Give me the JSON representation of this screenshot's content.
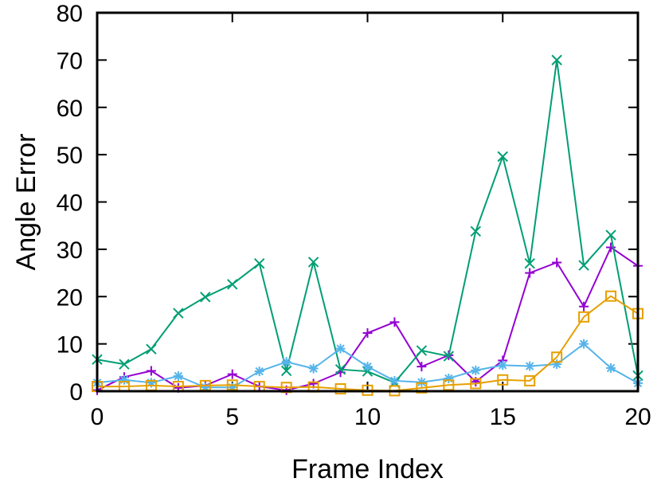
{
  "chart_data": {
    "type": "line",
    "xlabel": "Frame Index",
    "ylabel": "Angle Error",
    "xlim": [
      0,
      20
    ],
    "ylim": [
      0,
      80
    ],
    "xticks": [
      "0",
      "5",
      "10",
      "15",
      "20"
    ],
    "yticks": [
      "0",
      "10",
      "20",
      "30",
      "40",
      "50",
      "60",
      "70",
      "80"
    ],
    "grid": false,
    "legend": "none",
    "x": [
      0,
      1,
      2,
      3,
      4,
      5,
      6,
      7,
      8,
      9,
      10,
      11,
      12,
      13,
      14,
      15,
      16,
      17,
      18,
      19,
      20
    ],
    "series": [
      {
        "color": "#9400d3",
        "marker": "plus",
        "values": [
          0.2,
          3.0,
          4.3,
          0.7,
          1.2,
          3.6,
          1.0,
          0.2,
          1.6,
          4.0,
          12.3,
          14.6,
          5.2,
          7.6,
          2.0,
          6.5,
          25.0,
          27.2,
          17.9,
          30.4,
          26.5
        ]
      },
      {
        "color": "#009e73",
        "marker": "cross",
        "values": [
          6.7,
          5.7,
          8.9,
          16.5,
          19.9,
          22.6,
          27.0,
          4.3,
          27.3,
          4.6,
          4.2,
          1.8,
          8.6,
          7.4,
          33.8,
          49.6,
          27.0,
          70.0,
          26.6,
          33.0,
          3.3
        ]
      },
      {
        "color": "#56b4e9",
        "marker": "asterisk",
        "values": [
          1.8,
          2.4,
          1.8,
          3.2,
          0.8,
          0.8,
          4.2,
          6.2,
          4.8,
          9.0,
          5.2,
          2.2,
          1.9,
          2.7,
          4.4,
          5.5,
          5.3,
          5.7,
          10.0,
          4.9,
          1.7
        ]
      },
      {
        "color": "#e69f00",
        "marker": "square",
        "values": [
          1.0,
          1.0,
          1.2,
          1.0,
          1.2,
          1.3,
          1.0,
          0.8,
          0.9,
          0.5,
          0.2,
          0.1,
          0.7,
          1.3,
          1.6,
          2.4,
          2.2,
          7.2,
          15.7,
          20.1,
          16.4
        ]
      }
    ]
  }
}
